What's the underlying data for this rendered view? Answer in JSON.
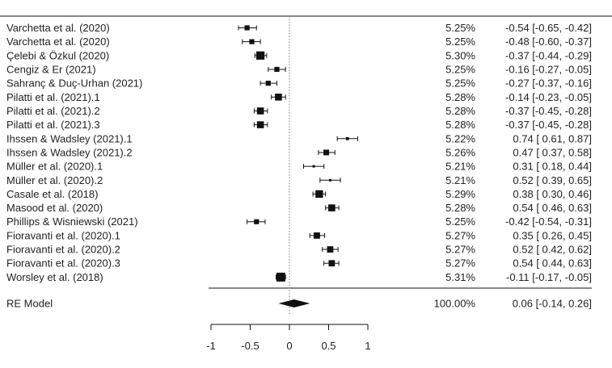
{
  "chart_data": {
    "type": "forest",
    "title": "",
    "xlabel": "",
    "ylabel": "",
    "xlim": [
      -1,
      1
    ],
    "xticks": [
      -1,
      -0.5,
      0,
      0.5,
      1
    ],
    "xtick_labels": [
      "-1",
      "-0.5",
      "0",
      "0.5",
      "1"
    ],
    "reference_line_x": 0,
    "grid": false,
    "studies": [
      {
        "label": "Varchetta  et al. (2020)",
        "weight": "5.25%",
        "estimate": -0.54,
        "ci_low": -0.65,
        "ci_high": -0.42,
        "ci_text": "-0.54 [-0.65, -0.42]"
      },
      {
        "label": "Varchetta et al. (2020)",
        "weight": "5.25%",
        "estimate": -0.48,
        "ci_low": -0.6,
        "ci_high": -0.37,
        "ci_text": "-0.48 [-0.60, -0.37]"
      },
      {
        "label": "Çelebi &  Özkul (2020)",
        "weight": "5.30%",
        "estimate": -0.37,
        "ci_low": -0.44,
        "ci_high": -0.29,
        "ci_text": "-0.37 [-0.44, -0.29]"
      },
      {
        "label": "Cengiz &  Er (2021)",
        "weight": "5.25%",
        "estimate": -0.16,
        "ci_low": -0.27,
        "ci_high": -0.05,
        "ci_text": "-0.16 [-0.27, -0.05]"
      },
      {
        "label": "Sahranç &  Duç-Urhan (2021)",
        "weight": "5.25%",
        "estimate": -0.27,
        "ci_low": -0.37,
        "ci_high": -0.16,
        "ci_text": "-0.27 [-0.37, -0.16]"
      },
      {
        "label": "Pilatti et al. (2021).1",
        "weight": "5.28%",
        "estimate": -0.14,
        "ci_low": -0.23,
        "ci_high": -0.05,
        "ci_text": "-0.14 [-0.23, -0.05]"
      },
      {
        "label": "Pilatti et al. (2021).2",
        "weight": "5.28%",
        "estimate": -0.37,
        "ci_low": -0.45,
        "ci_high": -0.28,
        "ci_text": "-0.37 [-0.45, -0.28]"
      },
      {
        "label": "Pilatti et al. (2021).3",
        "weight": "5.28%",
        "estimate": -0.37,
        "ci_low": -0.45,
        "ci_high": -0.28,
        "ci_text": "-0.37 [-0.45, -0.28]"
      },
      {
        "label": "Ihssen & Wadsley (2021).1",
        "weight": "5.22%",
        "estimate": 0.74,
        "ci_low": 0.61,
        "ci_high": 0.87,
        "ci_text": "0.74 [ 0.61,  0.87]"
      },
      {
        "label": "Ihssen & Wadsley (2021).2",
        "weight": "5.26%",
        "estimate": 0.47,
        "ci_low": 0.37,
        "ci_high": 0.58,
        "ci_text": "0.47 [ 0.37,  0.58]"
      },
      {
        "label": "Müller et al. (2020).1",
        "weight": "5.21%",
        "estimate": 0.31,
        "ci_low": 0.18,
        "ci_high": 0.44,
        "ci_text": "0.31 [ 0.18,  0.44]"
      },
      {
        "label": "Müller et al. (2020).2",
        "weight": "5.21%",
        "estimate": 0.52,
        "ci_low": 0.39,
        "ci_high": 0.65,
        "ci_text": "0.52 [ 0.39,  0.65]"
      },
      {
        "label": "Casale et al. (2018)",
        "weight": "5.29%",
        "estimate": 0.38,
        "ci_low": 0.3,
        "ci_high": 0.46,
        "ci_text": "0.38 [ 0.30,  0.46]"
      },
      {
        "label": "Masood et al. (2020)",
        "weight": "5.28%",
        "estimate": 0.54,
        "ci_low": 0.46,
        "ci_high": 0.63,
        "ci_text": "0.54 [ 0.46,  0.63]"
      },
      {
        "label": "Phillips & Wisniewski (2021)",
        "weight": "5.25%",
        "estimate": -0.42,
        "ci_low": -0.54,
        "ci_high": -0.31,
        "ci_text": "-0.42 [-0.54, -0.31]"
      },
      {
        "label": "Fioravanti et al. (2020).1",
        "weight": "5.27%",
        "estimate": 0.35,
        "ci_low": 0.26,
        "ci_high": 0.45,
        "ci_text": "0.35 [ 0.26,  0.45]"
      },
      {
        "label": "Fioravanti et al. (2020).2",
        "weight": "5.27%",
        "estimate": 0.52,
        "ci_low": 0.42,
        "ci_high": 0.62,
        "ci_text": "0.52 [ 0.42,  0.62]"
      },
      {
        "label": "Fioravanti et al. (2020).3",
        "weight": "5.27%",
        "estimate": 0.54,
        "ci_low": 0.44,
        "ci_high": 0.63,
        "ci_text": "0.54 [ 0.44,  0.63]"
      },
      {
        "label": "Worsley et al. (2018)",
        "weight": "5.31%",
        "estimate": -0.11,
        "ci_low": -0.17,
        "ci_high": -0.05,
        "ci_text": "-0.11 [-0.17, -0.05]"
      }
    ],
    "summary": {
      "label": "RE Model",
      "weight": "100.00%",
      "estimate": 0.06,
      "ci_low": -0.14,
      "ci_high": 0.26,
      "ci_text": "0.06 [-0.14,  0.26]"
    }
  },
  "colors": {
    "ink": "#111111",
    "text": "#222222",
    "refline": "#777777",
    "background": "#ffffff"
  }
}
